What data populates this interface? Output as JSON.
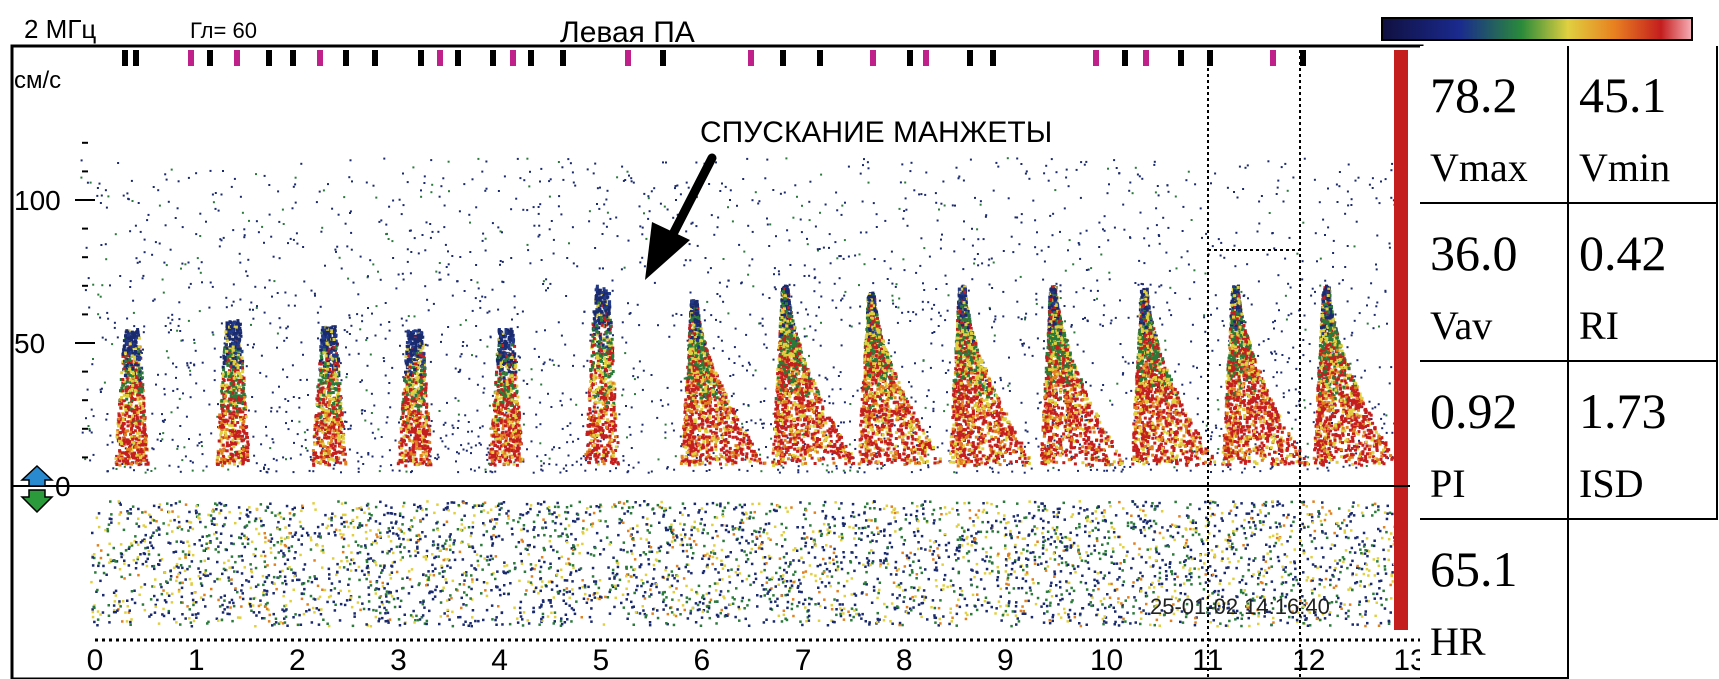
{
  "header": {
    "frequency": "2 МГц",
    "depth": "Гл= 60",
    "vessel": "Левая ПА"
  },
  "annotation": "СПУСКАНИЕ МАНЖЕТЫ",
  "timestamp": "25-01-02 14:16:40",
  "colors": {
    "spectrum_low": "#1a2a6e",
    "spectrum_mid": "#e0d040",
    "spectrum_high": "#c41e1e",
    "marker_magenta": "#c0208a"
  },
  "icons": [
    "direction-arrow-icon",
    "colorbar"
  ],
  "chart_data": {
    "type": "heatmap",
    "title": "",
    "xlabel": "",
    "ylabel": "см/с",
    "x_ticks": [
      "0",
      "1",
      "2",
      "3",
      "4",
      "5",
      "6",
      "7",
      "8",
      "9",
      "10",
      "11",
      "12",
      "13"
    ],
    "y_ticks": [
      "100",
      "50",
      "0"
    ],
    "xlim": [
      0,
      13
    ],
    "ylim": [
      -50,
      125
    ],
    "series": [
      {
        "peak_times": [
          0.35,
          1.35,
          2.3,
          3.15,
          4.05,
          5.0,
          5.9,
          6.8,
          7.65,
          8.55,
          9.45,
          10.35,
          11.25,
          12.15
        ],
        "peak_velocities": [
          55,
          58,
          56,
          55,
          55,
          70,
          65,
          70,
          68,
          70,
          70,
          69,
          70,
          70
        ]
      }
    ]
  },
  "measurements": {
    "vmax": {
      "value": "78.2",
      "label": "Vmax"
    },
    "vmin": {
      "value": "45.1",
      "label": "Vmin"
    },
    "vav": {
      "value": "36.0",
      "label": "Vav"
    },
    "ri": {
      "value": "0.42",
      "label": "RI"
    },
    "pi": {
      "value": "0.92",
      "label": "PI"
    },
    "isd": {
      "value": "1.73",
      "label": "ISD"
    },
    "hr": {
      "value": "65.1",
      "label": "HR"
    }
  }
}
